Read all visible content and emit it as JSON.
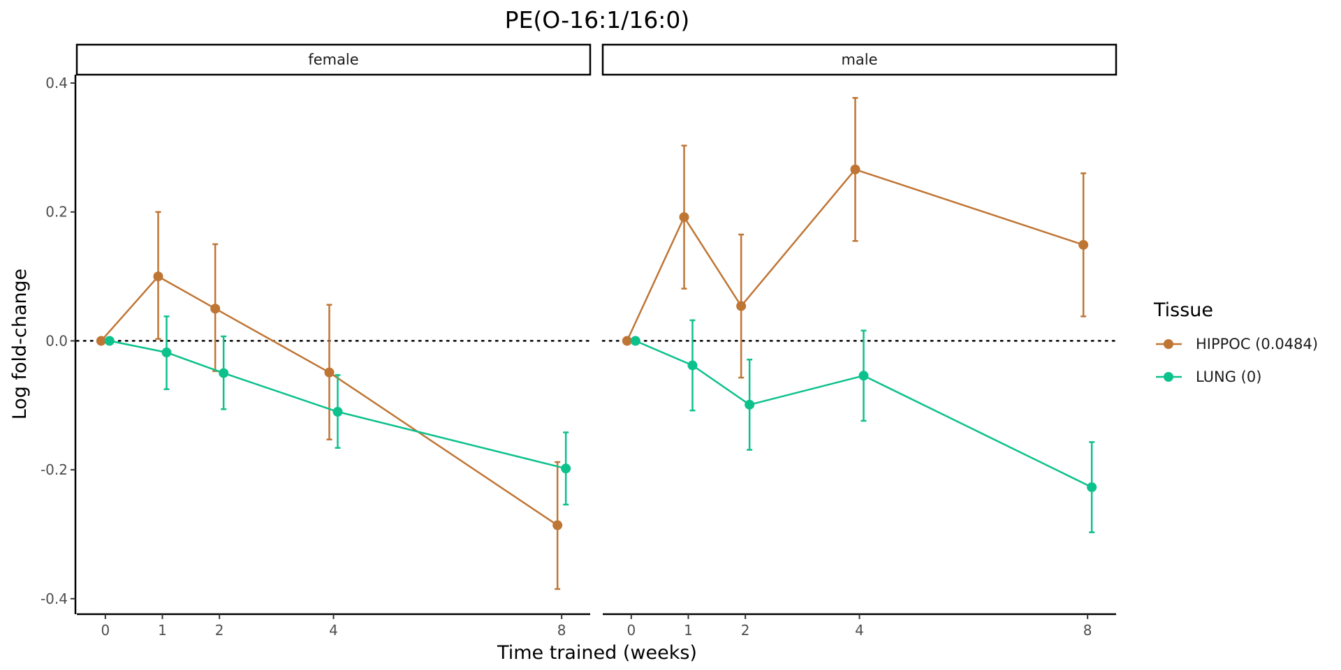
{
  "chart_data": {
    "type": "line",
    "title": "PE(O-16:1/16:0)",
    "xlabel": "Time trained (weeks)",
    "ylabel": "Log fold-change",
    "x_ticks": [
      0,
      1,
      2,
      4,
      8
    ],
    "xlim": [
      -0.5,
      8.5
    ],
    "y_ticks": [
      -0.4,
      -0.2,
      0.0,
      0.2,
      0.4
    ],
    "y_tick_labels": [
      "-0.4",
      "-0.2",
      "0.0",
      "0.2",
      "0.4"
    ],
    "ylim": [
      -0.424,
      0.413
    ],
    "reference_line": 0,
    "grid": false,
    "legend": {
      "title": "Tissue",
      "position": "right"
    },
    "facets": [
      {
        "label": "female",
        "series": [
          {
            "name": "HIPPOC (0.0484)",
            "color": "#BF7534",
            "points": [
              {
                "x": 0,
                "y": 0.0,
                "lo": 0.0,
                "hi": 0.0
              },
              {
                "x": 1,
                "y": 0.1,
                "lo": 0.003,
                "hi": 0.2
              },
              {
                "x": 2,
                "y": 0.05,
                "lo": -0.047,
                "hi": 0.15
              },
              {
                "x": 4,
                "y": -0.049,
                "lo": -0.153,
                "hi": 0.056
              },
              {
                "x": 8,
                "y": -0.286,
                "lo": -0.385,
                "hi": -0.188
              }
            ]
          },
          {
            "name": "LUNG (0)",
            "color": "#0CC18C",
            "points": [
              {
                "x": 0,
                "y": 0.0,
                "lo": 0.0,
                "hi": 0.0
              },
              {
                "x": 1,
                "y": -0.018,
                "lo": -0.075,
                "hi": 0.038
              },
              {
                "x": 2,
                "y": -0.05,
                "lo": -0.106,
                "hi": 0.007
              },
              {
                "x": 4,
                "y": -0.11,
                "lo": -0.166,
                "hi": -0.053
              },
              {
                "x": 8,
                "y": -0.198,
                "lo": -0.254,
                "hi": -0.142
              }
            ]
          }
        ]
      },
      {
        "label": "male",
        "series": [
          {
            "name": "HIPPOC (0.0484)",
            "color": "#BF7534",
            "points": [
              {
                "x": 0,
                "y": 0.0,
                "lo": 0.0,
                "hi": 0.0
              },
              {
                "x": 1,
                "y": 0.192,
                "lo": 0.081,
                "hi": 0.303
              },
              {
                "x": 2,
                "y": 0.054,
                "lo": -0.057,
                "hi": 0.165
              },
              {
                "x": 4,
                "y": 0.266,
                "lo": 0.155,
                "hi": 0.377
              },
              {
                "x": 8,
                "y": 0.149,
                "lo": 0.038,
                "hi": 0.26
              }
            ]
          },
          {
            "name": "LUNG (0)",
            "color": "#0CC18C",
            "points": [
              {
                "x": 0,
                "y": 0.0,
                "lo": 0.0,
                "hi": 0.0
              },
              {
                "x": 1,
                "y": -0.038,
                "lo": -0.108,
                "hi": 0.032
              },
              {
                "x": 2,
                "y": -0.099,
                "lo": -0.169,
                "hi": -0.029
              },
              {
                "x": 4,
                "y": -0.054,
                "lo": -0.124,
                "hi": 0.016
              },
              {
                "x": 8,
                "y": -0.227,
                "lo": -0.297,
                "hi": -0.157
              }
            ]
          }
        ]
      }
    ]
  }
}
